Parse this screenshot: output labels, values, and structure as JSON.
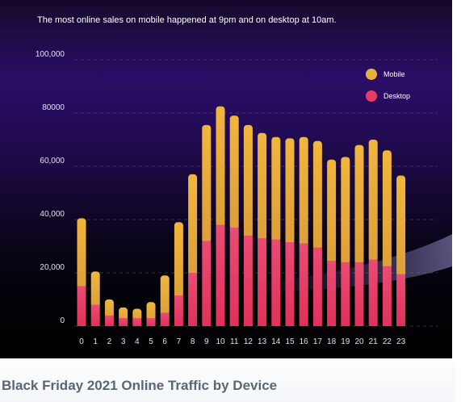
{
  "caption": "Black Friday 2021 Online Traffic by Device",
  "colors": {
    "mobile": "#e8b13c",
    "desktop": "#e63b62"
  },
  "chart_data": {
    "type": "bar",
    "stacked": true,
    "title": "The most online sales on mobile happened at 9pm and on desktop at 10am.",
    "xlabel": "",
    "ylabel": "",
    "categories": [
      "0",
      "1",
      "2",
      "3",
      "4",
      "5",
      "6",
      "7",
      "8",
      "9",
      "10",
      "11",
      "12",
      "13",
      "14",
      "15",
      "16",
      "17",
      "18",
      "19",
      "20",
      "21",
      "22",
      "23"
    ],
    "series": [
      {
        "name": "Desktop",
        "color": "#e63b62",
        "values": [
          15000,
          8000,
          4000,
          3000,
          3000,
          3000,
          5000,
          11500,
          20000,
          32000,
          38000,
          37000,
          34000,
          33000,
          32500,
          31500,
          31000,
          29500,
          24500,
          24000,
          24000,
          25000,
          22500,
          19500
        ]
      },
      {
        "name": "Mobile",
        "color": "#e8b13c",
        "values": [
          25500,
          12500,
          6000,
          4000,
          3500,
          6000,
          14000,
          27500,
          37000,
          43500,
          44500,
          42000,
          41500,
          39500,
          38500,
          39000,
          40000,
          40000,
          38000,
          39500,
          44000,
          45000,
          43500,
          37000
        ]
      }
    ],
    "yticks": [
      0,
      20000,
      40000,
      60000,
      80000,
      100000
    ],
    "ytick_labels": [
      "0",
      "20,000",
      "40,000",
      "60,000",
      "80000",
      "100,000"
    ],
    "ylim": [
      0,
      100000
    ],
    "grid": true,
    "legend": {
      "placement": "top-right",
      "entries": [
        "Mobile",
        "Desktop"
      ]
    }
  }
}
